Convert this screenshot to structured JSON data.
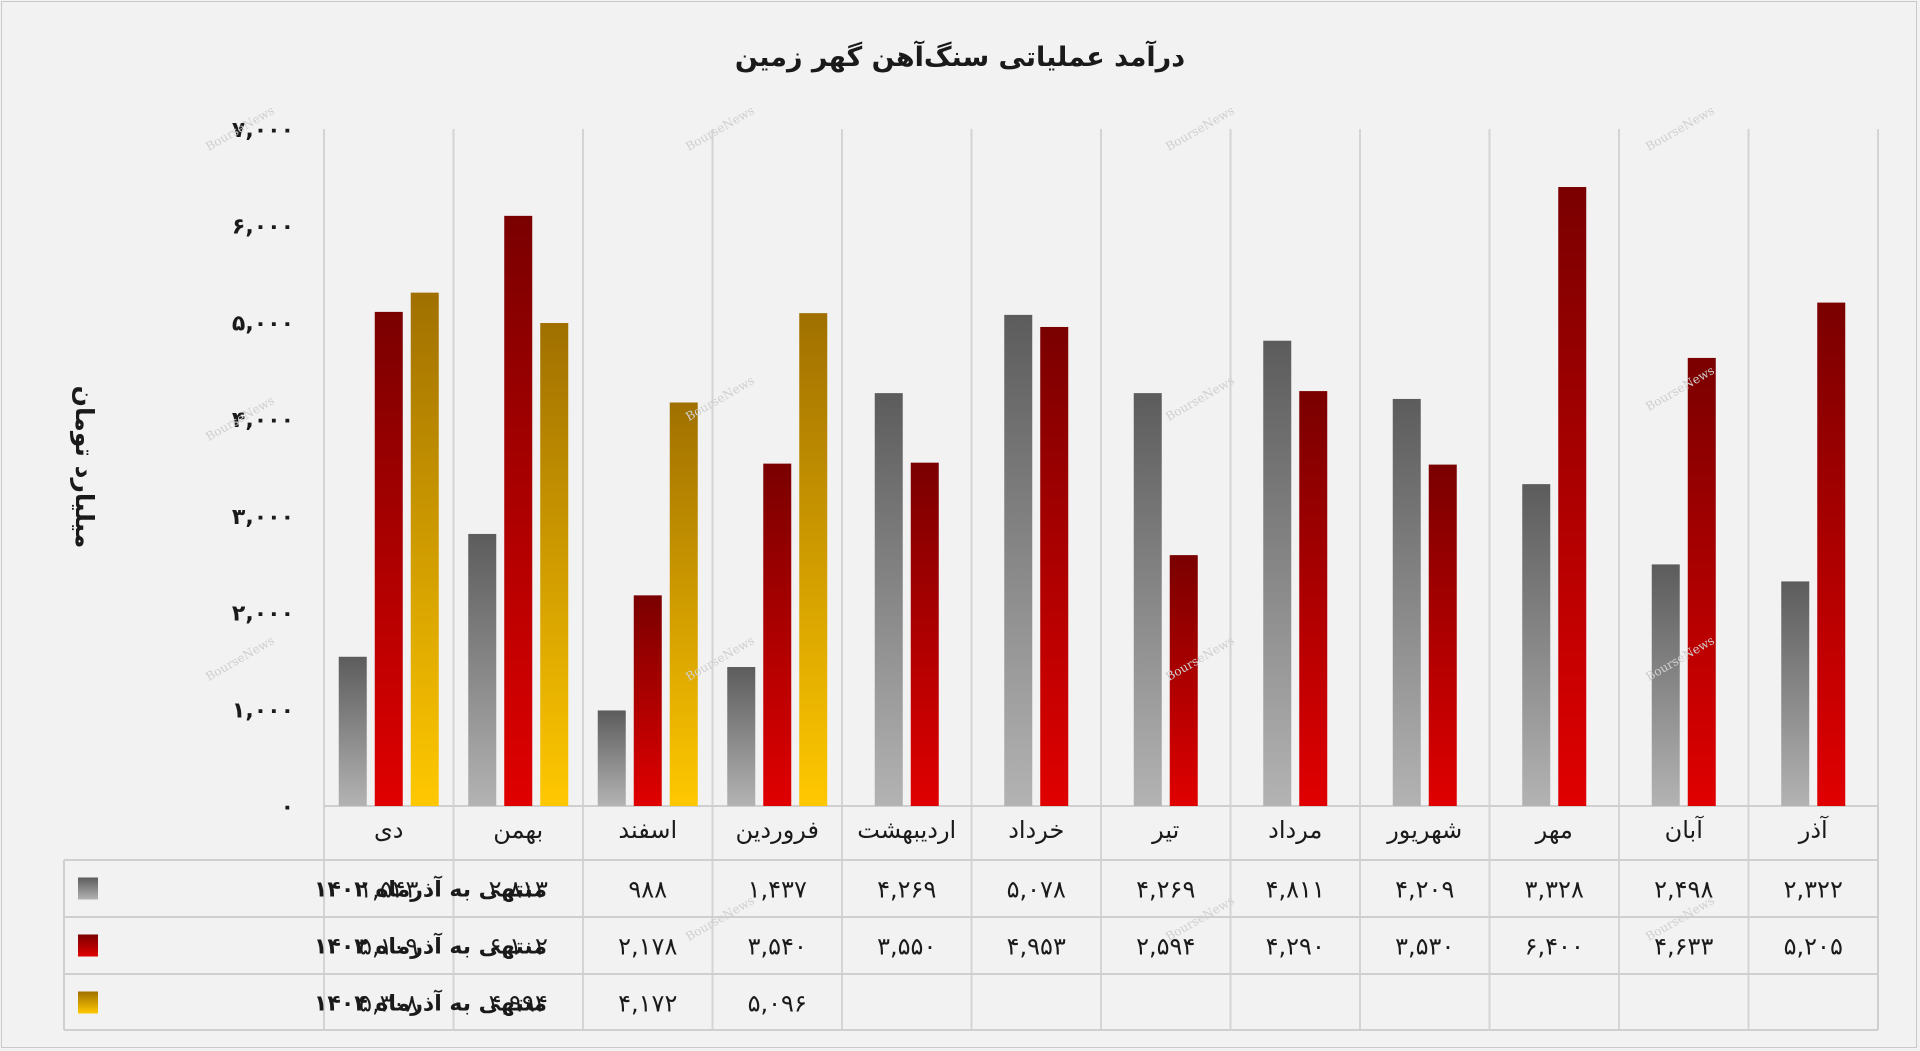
{
  "chart_data": {
    "type": "bar",
    "title": "درآمد عملیاتی سنگ‌آهن گهر زمین",
    "ylabel": "میلیارد تومان",
    "ylim": [
      0,
      7000
    ],
    "yticks": [
      0,
      1000,
      2000,
      3000,
      4000,
      5000,
      6000,
      7000
    ],
    "ytick_labels": [
      "۰",
      "۱,۰۰۰",
      "۲,۰۰۰",
      "۳,۰۰۰",
      "۴,۰۰۰",
      "۵,۰۰۰",
      "۶,۰۰۰",
      "۷,۰۰۰"
    ],
    "grid": true,
    "legend": "table-left",
    "categories": [
      "دی",
      "بهمن",
      "اسفند",
      "فروردین",
      "اردیبهشت",
      "خرداد",
      "تیر",
      "مرداد",
      "شهریور",
      "مهر",
      "آبان",
      "آذر"
    ],
    "series": [
      {
        "name": "منتهی به آذرماه ۱۴۰۲",
        "color": "#808080",
        "values": [
          1543,
          2813,
          988,
          1437,
          4269,
          5078,
          4269,
          4811,
          4209,
          3328,
          2498,
          2322
        ],
        "labels": [
          "۱,۵۴۳",
          "۲,۸۱۳",
          "۹۸۸",
          "۱,۴۳۷",
          "۴,۲۶۹",
          "۵,۰۷۸",
          "۴,۲۶۹",
          "۴,۸۱۱",
          "۴,۲۰۹",
          "۳,۳۲۸",
          "۲,۴۹۸",
          "۲,۳۲۲"
        ]
      },
      {
        "name": "منتهی به آذرماه ۱۴۰۳",
        "color": "#b00000",
        "values": [
          5109,
          6102,
          2178,
          3540,
          3550,
          4953,
          2594,
          4290,
          3530,
          6400,
          4633,
          5205
        ],
        "labels": [
          "۵,۱۰۹",
          "۶,۱۰۲",
          "۲,۱۷۸",
          "۳,۵۴۰",
          "۳,۵۵۰",
          "۴,۹۵۳",
          "۲,۵۹۴",
          "۴,۲۹۰",
          "۳,۵۳۰",
          "۶,۴۰۰",
          "۴,۶۳۳",
          "۵,۲۰۵"
        ]
      },
      {
        "name": "منتهی به آذرماه ۱۴۰۴",
        "color": "#e6a800",
        "values": [
          5308,
          4994,
          4172,
          5096,
          null,
          null,
          null,
          null,
          null,
          null,
          null,
          null
        ],
        "labels": [
          "۵,۳۰۸",
          "۴,۹۹۴",
          "۴,۱۷۲",
          "۵,۰۹۶",
          "",
          "",
          "",
          "",
          "",
          "",
          "",
          ""
        ]
      }
    ]
  },
  "watermark": "BourseNews"
}
